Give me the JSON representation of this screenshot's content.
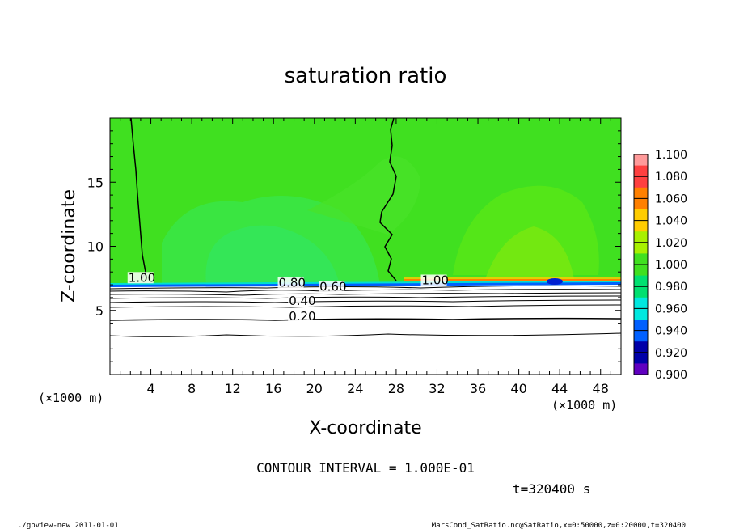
{
  "chart_data": {
    "type": "heatmap",
    "title": "saturation ratio",
    "xlabel": "X-coordinate",
    "ylabel": "Z-coordinate",
    "x_unit": "(×1000 m)",
    "z_unit": "(×1000 m)",
    "xlim": [
      0,
      50
    ],
    "ylim": [
      0,
      20
    ],
    "x_ticks": [
      4,
      8,
      12,
      16,
      20,
      24,
      28,
      32,
      36,
      40,
      44,
      48
    ],
    "y_ticks": [
      5,
      10,
      15
    ],
    "colorbar": {
      "levels": [
        "1.100",
        "1.080",
        "1.060",
        "1.040",
        "1.020",
        "1.000",
        "0.980",
        "0.960",
        "0.940",
        "0.920",
        "0.900"
      ],
      "colors": [
        "#ff9a9a",
        "#ff4040",
        "#ff8000",
        "#ffcc00",
        "#a8f000",
        "#40e020",
        "#00e070",
        "#00e8e0",
        "#0060ff",
        "#0000a8",
        "#6000c0"
      ]
    },
    "contour_labels": [
      {
        "text": "1.00",
        "x": 1.8,
        "z": 7.3
      },
      {
        "text": "1.00",
        "x": 30.5,
        "z": 7.1
      },
      {
        "text": "0.80",
        "x": 16.5,
        "z": 6.9
      },
      {
        "text": "0.60",
        "x": 20.5,
        "z": 6.6
      },
      {
        "text": "0.40",
        "x": 17.5,
        "z": 5.5
      },
      {
        "text": "0.20",
        "x": 17.5,
        "z": 4.3
      }
    ],
    "contour_interval": "CONTOUR INTERVAL = 1.000E-01",
    "time": "t=320400 s"
  },
  "footer": {
    "left": "./gpview-new  2011-01-01",
    "right": "MarsCond_SatRatio.nc@SatRatio,x=0:50000,z=0:20000,t=320400"
  }
}
